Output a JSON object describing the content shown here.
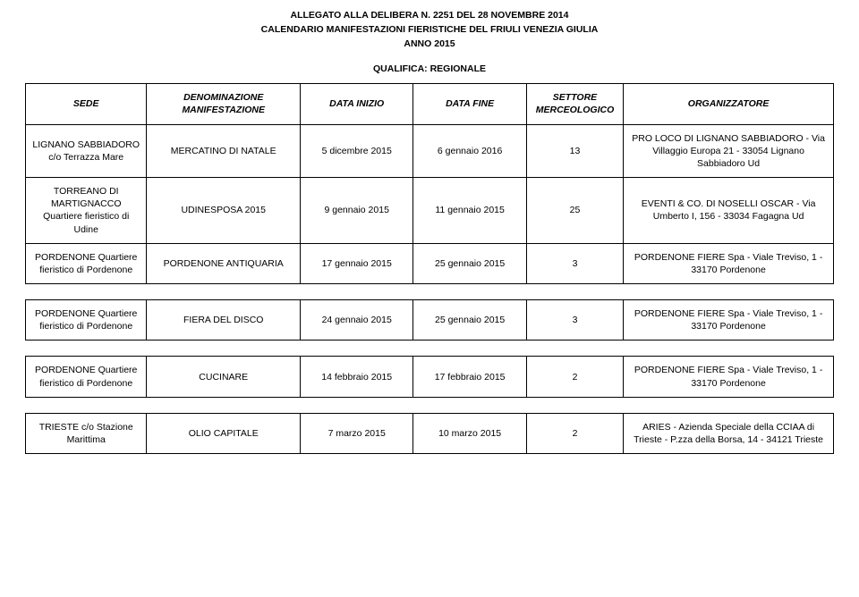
{
  "header": {
    "line1": "ALLEGATO ALLA DELIBERA N. 2251 DEL 28 NOVEMBRE 2014",
    "line2": "CALENDARIO MANIFESTAZIONI FIERISTICHE DEL FRIULI VENEZIA GIULIA",
    "line3": "ANNO 2015"
  },
  "qualifica": "QUALIFICA: REGIONALE",
  "columns": {
    "sede": "SEDE",
    "denominazione": "DENOMINAZIONE MANIFESTAZIONE",
    "data_inizio": "DATA INIZIO",
    "data_fine": "DATA FINE",
    "settore": "SETTORE MERCEOLOGICO",
    "organizzatore": "ORGANIZZATORE"
  },
  "rows": [
    {
      "sede": "LIGNANO SABBIADORO c/o Terrazza Mare",
      "denom": "MERCATINO DI NATALE",
      "inizio": "5 dicembre 2015",
      "fine": "6 gennaio 2016",
      "settore": "13",
      "org": "PRO LOCO DI LIGNANO SABBIADORO - Via Villaggio Europa 21 - 33054 Lignano Sabbiadoro Ud"
    },
    {
      "sede": "TORREANO DI MARTIGNACCO Quartiere fieristico di Udine",
      "denom": "UDINESPOSA 2015",
      "inizio": "9 gennaio 2015",
      "fine": "11 gennaio 2015",
      "settore": "25",
      "org": "EVENTI & CO. DI NOSELLI OSCAR - Via Umberto I, 156 - 33034 Fagagna Ud"
    },
    {
      "sede": "PORDENONE Quartiere fieristico di Pordenone",
      "denom": "PORDENONE ANTIQUARIA",
      "inizio": "17 gennaio 2015",
      "fine": "25 gennaio 2015",
      "settore": "3",
      "org": "PORDENONE FIERE Spa - Viale Treviso, 1 - 33170 Pordenone"
    },
    {
      "sede": "PORDENONE Quartiere fieristico di Pordenone",
      "denom": "FIERA DEL DISCO",
      "inizio": "24 gennaio 2015",
      "fine": "25 gennaio 2015",
      "settore": "3",
      "org": "PORDENONE FIERE Spa - Viale Treviso, 1 - 33170 Pordenone"
    },
    {
      "sede": "PORDENONE Quartiere fieristico di Pordenone",
      "denom": "CUCINARE",
      "inizio": "14 febbraio 2015",
      "fine": "17 febbraio 2015",
      "settore": "2",
      "org": "PORDENONE FIERE Spa - Viale Treviso, 1 - 33170 Pordenone"
    },
    {
      "sede": "TRIESTE c/o Stazione Marittima",
      "denom": "OLIO CAPITALE",
      "inizio": "7 marzo 2015",
      "fine": "10 marzo 2015",
      "settore": "2",
      "org": "ARIES - Azienda Speciale della CCIAA di Trieste - P.zza della Borsa, 14 - 34121 Trieste"
    }
  ]
}
